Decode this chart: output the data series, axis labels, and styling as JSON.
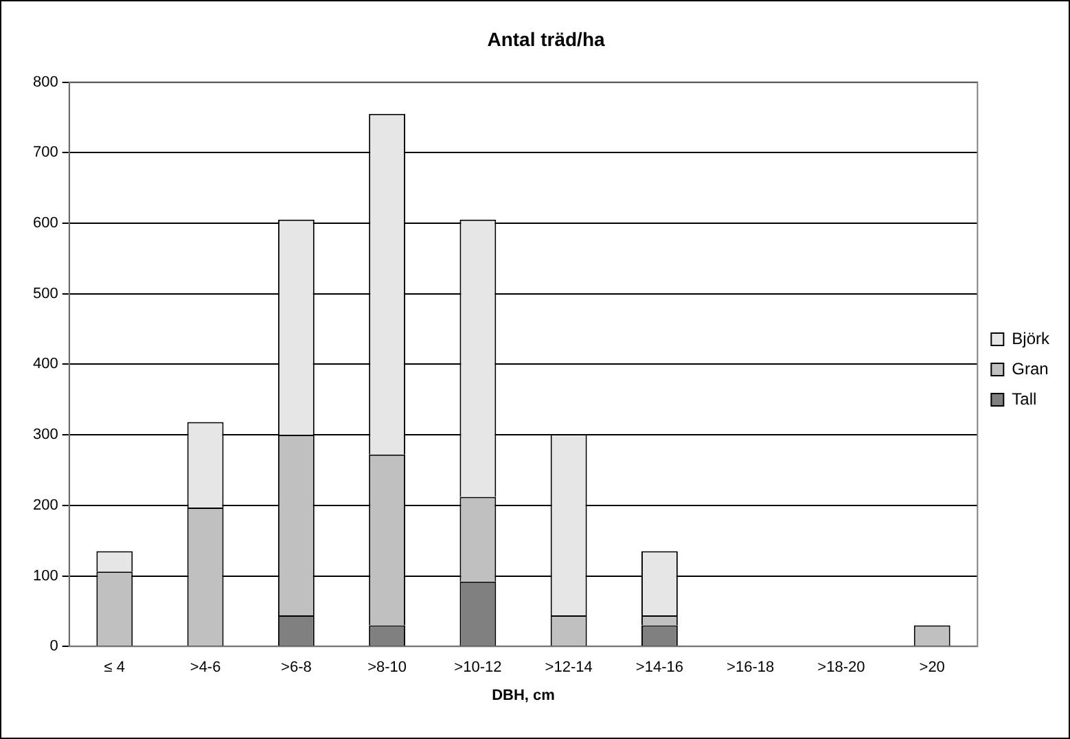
{
  "chart_data": {
    "type": "bar",
    "title": "Antal träd/ha",
    "xlabel": "DBH, cm",
    "stacked": true,
    "categories": [
      "≤ 4",
      ">4-6",
      ">6-8",
      ">8-10",
      ">10-12",
      ">12-14",
      ">14-16",
      ">16-18",
      ">18-20",
      ">20"
    ],
    "series": [
      {
        "name": "Tall",
        "color": "#808080",
        "values": [
          0,
          0,
          44,
          30,
          92,
          0,
          30,
          0,
          0,
          0
        ]
      },
      {
        "name": "Gran",
        "color": "#c0c0c0",
        "values": [
          106,
          197,
          256,
          242,
          120,
          44,
          14,
          0,
          0,
          30
        ]
      },
      {
        "name": "Björk",
        "color": "#e6e6e6",
        "values": [
          29,
          121,
          305,
          483,
          393,
          257,
          91,
          0,
          0,
          0
        ]
      }
    ],
    "ylim": [
      0,
      800
    ],
    "yticks": [
      0,
      100,
      200,
      300,
      400,
      500,
      600,
      700,
      800
    ],
    "grid": "y",
    "legend": "right"
  }
}
